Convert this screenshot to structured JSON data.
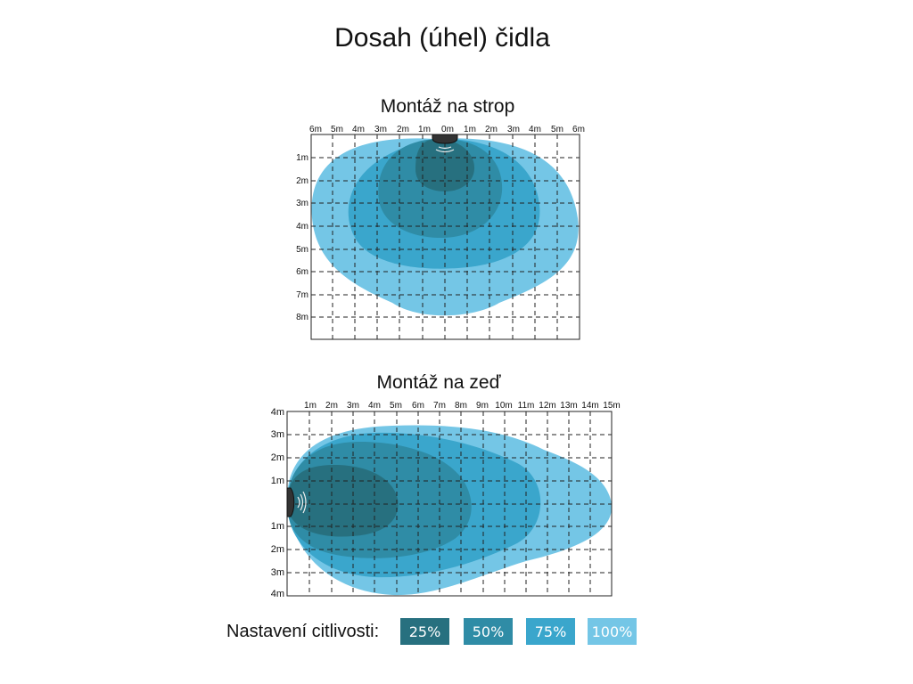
{
  "title": "Dosah (úhel) čidla",
  "colors": {
    "s25": "#27707f",
    "s50": "#2f8ca6",
    "s75": "#3aa6cc",
    "s100": "#74c6e6"
  },
  "ceiling": {
    "title": "Montáž na strop",
    "x_ticks": [
      "6m",
      "5m",
      "4m",
      "3m",
      "2m",
      "1m",
      "0m",
      "1m",
      "2m",
      "3m",
      "4m",
      "5m",
      "6m"
    ],
    "y_ticks": [
      "1m",
      "2m",
      "3m",
      "4m",
      "5m",
      "6m",
      "7m",
      "8m"
    ],
    "sensor_icon": "ceiling-sensor-icon"
  },
  "wall": {
    "title": "Montáž na zeď",
    "x_ticks": [
      "1m",
      "2m",
      "3m",
      "4m",
      "5m",
      "6m",
      "7m",
      "8m",
      "9m",
      "10m",
      "11m",
      "12m",
      "13m",
      "14m",
      "15m"
    ],
    "y_ticks": [
      "4m",
      "3m",
      "2m",
      "1m",
      "1m",
      "2m",
      "3m",
      "4m"
    ],
    "sensor_icon": "wall-sensor-icon"
  },
  "legend": {
    "label": "Nastavení citlivosti:",
    "items": [
      {
        "label": "25%",
        "color": "#27707f"
      },
      {
        "label": "50%",
        "color": "#2f8ca6"
      },
      {
        "label": "75%",
        "color": "#3aa6cc"
      },
      {
        "label": "100%",
        "color": "#74c6e6"
      }
    ]
  }
}
